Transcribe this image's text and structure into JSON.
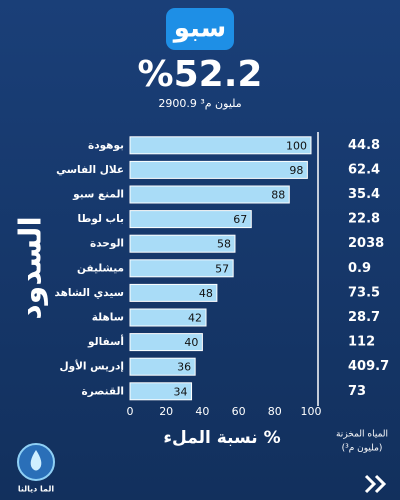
{
  "chart_data": {
    "type": "bar",
    "orientation": "horizontal",
    "title": "سبو",
    "headline": "%52.2",
    "subtitle": "2900.9 مليون م³",
    "categories": [
      "بوهودة",
      "علال الفاسي",
      "المنع سبو",
      "باب لوطا",
      "الوحدة",
      "ميشليفن",
      "سيدي الشاهد",
      "ساهلة",
      "أسفالو",
      "إدريس الأول",
      "القنصرة"
    ],
    "values": [
      100,
      98,
      88,
      67,
      58,
      57,
      48,
      42,
      40,
      36,
      34
    ],
    "color": "#a9dcf7",
    "xlim": [
      0,
      100
    ],
    "xticks": [
      0,
      20,
      40,
      60,
      80,
      100
    ],
    "xlabel": "نسبة الملء %",
    "ylabel": "السدود",
    "storage_label": [
      "المياه المخزنة",
      "(مليون م³)"
    ],
    "storage_values": [
      44.8,
      62.4,
      35.4,
      22.8,
      2038,
      0.9,
      73.5,
      28.7,
      112,
      409.7,
      73
    ]
  },
  "logo": "الما ديالنا"
}
